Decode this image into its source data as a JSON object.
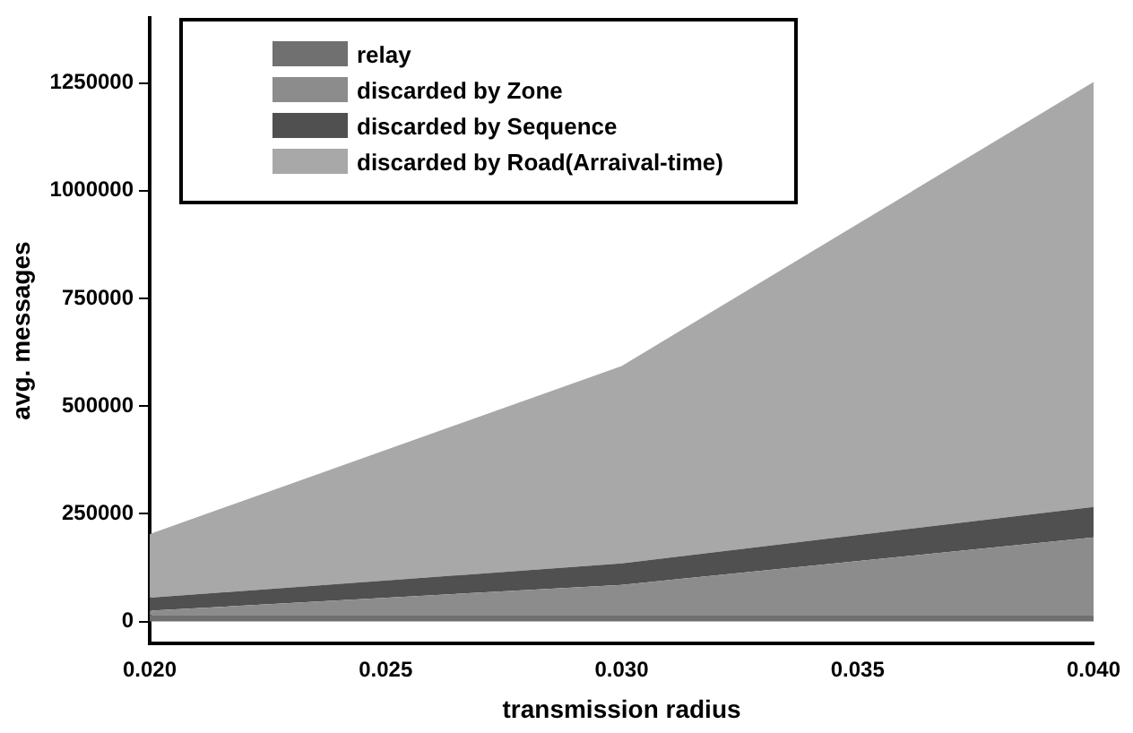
{
  "chart_data": {
    "type": "area",
    "stacked": true,
    "xlabel": "transmission radius",
    "ylabel": "avg. messages",
    "x": [
      0.02,
      0.03,
      0.04
    ],
    "series": [
      {
        "name": "relay",
        "color": "#707070",
        "values": [
          15000,
          15000,
          15000
        ]
      },
      {
        "name": "discarded by Zone",
        "color": "#8c8c8c",
        "values": [
          10000,
          70000,
          180000
        ]
      },
      {
        "name": "discarded by Sequence",
        "color": "#505050",
        "values": [
          30000,
          50000,
          71000
        ]
      },
      {
        "name": "discarded by Road(Arraival-time)",
        "color": "#a8a8a8",
        "values": [
          148000,
          458000,
          986000
        ]
      }
    ],
    "xlim": [
      0.02,
      0.04
    ],
    "xticks": [
      {
        "value": 0.02,
        "label": "0.020"
      },
      {
        "value": 0.025,
        "label": "0.025"
      },
      {
        "value": 0.03,
        "label": "0.030"
      },
      {
        "value": 0.035,
        "label": "0.035"
      },
      {
        "value": 0.04,
        "label": "0.040"
      }
    ],
    "ylim": [
      -50000,
      1400000
    ],
    "yticks": [
      0,
      250000,
      500000,
      750000,
      1000000,
      1250000
    ],
    "grid": false,
    "legend": "top left"
  }
}
